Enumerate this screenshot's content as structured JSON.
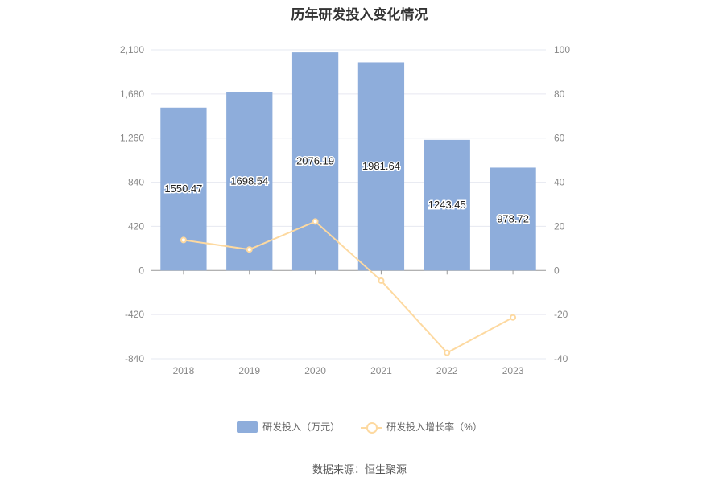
{
  "chart_data": {
    "type": "bar",
    "title": "历年研发投入变化情况",
    "categories": [
      "2018",
      "2019",
      "2020",
      "2021",
      "2022",
      "2023"
    ],
    "series": [
      {
        "name": "研发投入（万元）",
        "type": "bar",
        "axis": "left",
        "color": "#8eaddb",
        "values": [
          1550.47,
          1698.54,
          2076.19,
          1981.64,
          1243.45,
          978.72
        ],
        "labels": [
          "1550.47",
          "1698.54",
          "2076.19",
          "1981.64",
          "1243.45",
          "978.72"
        ]
      },
      {
        "name": "研发投入增长率（%）",
        "type": "line",
        "axis": "right",
        "color": "#fdd9a0",
        "values": [
          13.8,
          9.5,
          22.2,
          -4.6,
          -37.3,
          -21.3
        ]
      }
    ],
    "y_left": {
      "range": [
        -840,
        2100
      ],
      "ticks": [
        2100,
        1680,
        1260,
        840,
        420,
        0,
        -420,
        -840
      ],
      "tick_labels": [
        "2,100",
        "1,680",
        "1,260",
        "840",
        "420",
        "0",
        "-420",
        "-840"
      ]
    },
    "y_right": {
      "range": [
        -40,
        100
      ],
      "ticks": [
        100,
        80,
        60,
        40,
        20,
        0,
        -20,
        -40
      ],
      "tick_labels": [
        "100",
        "80",
        "60",
        "40",
        "20",
        "0",
        "-20",
        "-40"
      ]
    },
    "grid": true,
    "legend_position": "bottom",
    "source": "数据来源：恒生聚源"
  }
}
